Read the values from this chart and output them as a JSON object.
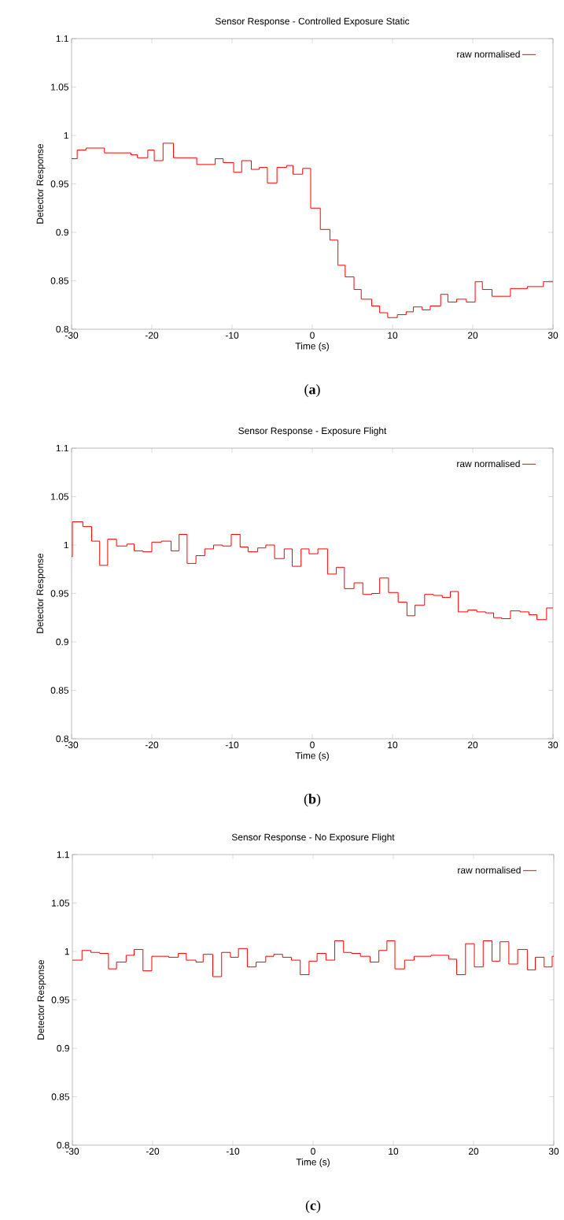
{
  "chart_data": [
    {
      "type": "step",
      "title": "Sensor Response - Controlled Exposure Static",
      "xlabel": "Time (s)",
      "ylabel": "Detector Response",
      "annotations": [
        "(**a**)"
      ],
      "xlim": [
        -30,
        30
      ],
      "ylim": [
        0.8,
        1.1
      ],
      "xticks": [
        -30,
        -20,
        -10,
        0,
        10,
        20,
        30
      ],
      "yticks": [
        0.8,
        0.85,
        0.9,
        0.95,
        1,
        1.05,
        1.1
      ],
      "legend": "top right",
      "series": [
        {
          "name": "raw normalised",
          "color": "#ff0000",
          "x": [
            -30,
            -29.3,
            -28.2,
            -25.9,
            -22.6,
            -21.8,
            -20.5,
            -19.7,
            -18.6,
            -17.3,
            -14.4,
            -12.1,
            -11.1,
            -9.8,
            -8.8,
            -7.6,
            -6.6,
            -5.6,
            -4.4,
            -3.2,
            -2.4,
            -1.2,
            -0.2,
            1.0,
            2.2,
            3.2,
            4.1,
            5.2,
            6.1,
            7.4,
            8.4,
            9.4,
            10.6,
            11.7,
            12.6,
            13.7,
            14.7,
            16.0,
            16.9,
            18.0,
            19.2,
            20.3,
            21.2,
            22.4,
            24.7,
            26.8,
            28.8,
            30
          ],
          "values": [
            0.976,
            0.985,
            0.987,
            0.982,
            0.98,
            0.977,
            0.985,
            0.974,
            0.992,
            0.977,
            0.97,
            0.976,
            0.972,
            0.962,
            0.974,
            0.965,
            0.967,
            0.951,
            0.967,
            0.969,
            0.96,
            0.966,
            0.925,
            0.903,
            0.892,
            0.866,
            0.854,
            0.841,
            0.831,
            0.824,
            0.817,
            0.812,
            0.815,
            0.818,
            0.823,
            0.82,
            0.824,
            0.836,
            0.828,
            0.831,
            0.828,
            0.849,
            0.841,
            0.834,
            0.842,
            0.844,
            0.849,
            0.849
          ]
        }
      ]
    },
    {
      "type": "step",
      "title": "Sensor Response - Exposure Flight",
      "xlabel": "Time (s)",
      "ylabel": "Detector Response",
      "annotations": [
        "(**b**)"
      ],
      "xlim": [
        -30,
        30
      ],
      "ylim": [
        0.8,
        1.1
      ],
      "xticks": [
        -30,
        -20,
        -10,
        0,
        10,
        20,
        30
      ],
      "yticks": [
        0.8,
        0.85,
        0.9,
        0.95,
        1,
        1.05,
        1.1
      ],
      "legend": "top right",
      "series": [
        {
          "name": "raw normalised",
          "color": "#ff0000",
          "x": [
            -30,
            -29.9,
            -28.6,
            -27.5,
            -26.5,
            -25.5,
            -24.4,
            -23.1,
            -22.2,
            -21.1,
            -20.0,
            -18.8,
            -17.6,
            -16.6,
            -15.6,
            -14.5,
            -13.4,
            -12.3,
            -11.2,
            -10.1,
            -9.0,
            -8.0,
            -6.8,
            -5.8,
            -4.7,
            -3.5,
            -2.5,
            -1.4,
            -0.4,
            0.7,
            1.9,
            3.0,
            4.0,
            5.2,
            6.3,
            7.4,
            8.4,
            9.5,
            10.7,
            11.8,
            12.8,
            14.0,
            15.1,
            16.2,
            17.2,
            18.2,
            19.4,
            20.5,
            21.6,
            22.6,
            23.6,
            24.7,
            25.9,
            27.0,
            28.0,
            29.2,
            30
          ],
          "values": [
            0.988,
            1.024,
            1.019,
            1.004,
            0.979,
            1.006,
            0.999,
            1.001,
            0.994,
            0.993,
            1.003,
            1.004,
            0.994,
            1.011,
            0.981,
            0.989,
            0.996,
            1.0,
            0.999,
            1.011,
            0.998,
            0.993,
            0.997,
            1.0,
            0.986,
            0.996,
            0.978,
            0.996,
            0.991,
            0.996,
            0.97,
            0.977,
            0.955,
            0.961,
            0.949,
            0.95,
            0.966,
            0.951,
            0.941,
            0.927,
            0.938,
            0.949,
            0.948,
            0.946,
            0.952,
            0.931,
            0.933,
            0.931,
            0.93,
            0.925,
            0.924,
            0.932,
            0.931,
            0.928,
            0.923,
            0.935,
            0.935
          ]
        }
      ]
    },
    {
      "type": "step",
      "title": "Sensor Response - No Exposure Flight",
      "xlabel": "Time (s)",
      "ylabel": "Detector Response",
      "annotations": [
        "(**c**)"
      ],
      "xlim": [
        -30,
        30
      ],
      "ylim": [
        0.8,
        1.1
      ],
      "xticks": [
        -30,
        -20,
        -10,
        0,
        10,
        20,
        30
      ],
      "yticks": [
        0.8,
        0.85,
        0.9,
        0.95,
        1,
        1.05,
        1.1
      ],
      "legend": "top right",
      "series": [
        {
          "name": "raw normalised",
          "color": "#ff0000",
          "x": [
            -30,
            -28.8,
            -27.7,
            -26.6,
            -25.5,
            -24.5,
            -23.3,
            -22.3,
            -21.2,
            -20.1,
            -18.0,
            -16.8,
            -15.8,
            -14.6,
            -13.7,
            -12.5,
            -11.4,
            -10.3,
            -9.3,
            -8.2,
            -7.1,
            -5.9,
            -4.9,
            -3.8,
            -2.7,
            -1.6,
            -0.5,
            0.5,
            1.6,
            2.7,
            3.8,
            4.8,
            5.9,
            7.1,
            8.2,
            9.2,
            10.2,
            11.4,
            12.6,
            13.6,
            14.7,
            15.8,
            16.9,
            17.9,
            19.0,
            20.1,
            21.2,
            22.3,
            23.3,
            24.4,
            25.5,
            26.7,
            27.7,
            28.8,
            29.8,
            30
          ],
          "values": [
            0.991,
            1.001,
            0.999,
            0.998,
            0.982,
            0.989,
            0.996,
            1.002,
            0.98,
            0.995,
            0.994,
            0.998,
            0.991,
            0.989,
            0.997,
            0.974,
            0.999,
            0.994,
            1.003,
            0.984,
            0.989,
            0.995,
            0.997,
            0.994,
            0.991,
            0.976,
            0.99,
            0.998,
            0.991,
            1.011,
            0.999,
            0.998,
            0.995,
            0.989,
            1.001,
            1.011,
            0.982,
            0.991,
            0.995,
            0.995,
            0.996,
            0.996,
            0.992,
            0.976,
            1.008,
            0.984,
            1.011,
            0.99,
            1.01,
            0.987,
            1.002,
            0.981,
            0.994,
            0.984,
            0.995,
            0.995
          ]
        }
      ]
    }
  ]
}
